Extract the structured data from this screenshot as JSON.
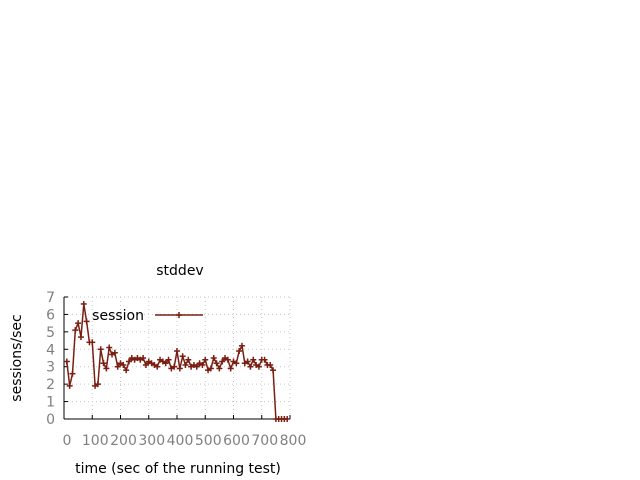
{
  "chart_data": {
    "type": "line",
    "title": "stddev",
    "xlabel": "time (sec of the running test)",
    "ylabel": "sessions/sec",
    "xlim": [
      0,
      800
    ],
    "ylim": [
      0,
      7
    ],
    "x_ticks": [
      "0",
      "100",
      "200",
      "300",
      "400",
      "500",
      "600",
      "700",
      "800"
    ],
    "y_ticks": [
      "0",
      "1",
      "2",
      "3",
      "4",
      "5",
      "6",
      "7"
    ],
    "grid": true,
    "legend_position": "top-left",
    "series": [
      {
        "name": "session",
        "color": "#7a1e12",
        "marker": "plus",
        "points": [
          [
            10,
            3.3
          ],
          [
            20,
            1.9
          ],
          [
            30,
            2.6
          ],
          [
            40,
            5.1
          ],
          [
            50,
            5.5
          ],
          [
            60,
            4.7
          ],
          [
            70,
            6.6
          ],
          [
            80,
            5.6
          ],
          [
            90,
            4.4
          ],
          [
            100,
            4.4
          ],
          [
            110,
            1.9
          ],
          [
            120,
            2.0
          ],
          [
            130,
            4.0
          ],
          [
            140,
            3.2
          ],
          [
            150,
            2.9
          ],
          [
            160,
            4.1
          ],
          [
            170,
            3.7
          ],
          [
            180,
            3.8
          ],
          [
            190,
            3.0
          ],
          [
            200,
            3.2
          ],
          [
            210,
            3.1
          ],
          [
            220,
            2.8
          ],
          [
            230,
            3.3
          ],
          [
            240,
            3.5
          ],
          [
            250,
            3.4
          ],
          [
            260,
            3.5
          ],
          [
            270,
            3.4
          ],
          [
            280,
            3.5
          ],
          [
            290,
            3.1
          ],
          [
            300,
            3.3
          ],
          [
            310,
            3.2
          ],
          [
            320,
            3.1
          ],
          [
            330,
            3.0
          ],
          [
            340,
            3.4
          ],
          [
            350,
            3.3
          ],
          [
            360,
            3.2
          ],
          [
            370,
            3.4
          ],
          [
            380,
            2.9
          ],
          [
            390,
            3.0
          ],
          [
            400,
            3.9
          ],
          [
            410,
            2.9
          ],
          [
            420,
            3.6
          ],
          [
            430,
            3.1
          ],
          [
            440,
            3.4
          ],
          [
            450,
            3.0
          ],
          [
            460,
            3.1
          ],
          [
            470,
            3.0
          ],
          [
            480,
            3.2
          ],
          [
            490,
            3.1
          ],
          [
            500,
            3.4
          ],
          [
            510,
            2.8
          ],
          [
            520,
            2.9
          ],
          [
            530,
            3.5
          ],
          [
            540,
            3.2
          ],
          [
            550,
            2.9
          ],
          [
            560,
            3.3
          ],
          [
            570,
            3.5
          ],
          [
            580,
            3.4
          ],
          [
            590,
            2.9
          ],
          [
            600,
            3.3
          ],
          [
            610,
            3.2
          ],
          [
            620,
            3.9
          ],
          [
            630,
            4.2
          ],
          [
            640,
            3.2
          ],
          [
            650,
            3.3
          ],
          [
            660,
            3.0
          ],
          [
            670,
            3.4
          ],
          [
            680,
            3.1
          ],
          [
            690,
            3.0
          ],
          [
            700,
            3.4
          ],
          [
            710,
            3.4
          ],
          [
            720,
            3.1
          ],
          [
            730,
            3.1
          ],
          [
            740,
            2.8
          ],
          [
            750,
            0.0
          ],
          [
            760,
            0.0
          ],
          [
            770,
            0.0
          ],
          [
            780,
            0.0
          ],
          [
            790,
            0.0
          ]
        ]
      }
    ]
  }
}
